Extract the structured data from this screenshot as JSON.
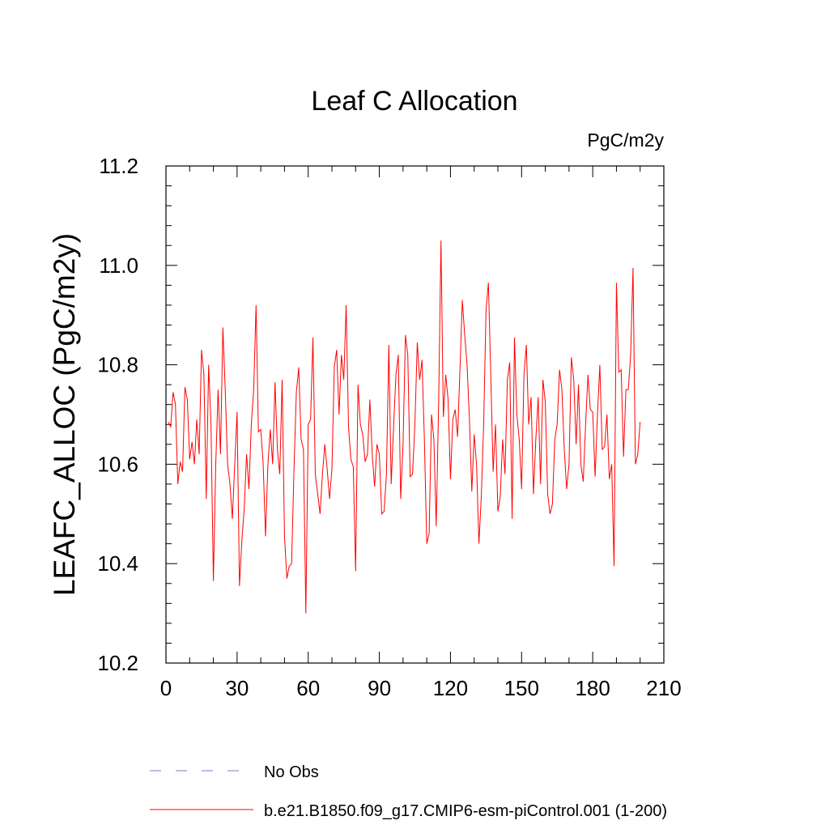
{
  "chart_data": {
    "type": "line",
    "title": "Leaf C Allocation",
    "units": "PgC/m2y",
    "xlabel": "",
    "ylabel": "LEAFC_ALLOC  (PgC/m2y)",
    "xlim": [
      0,
      210
    ],
    "ylim": [
      10.2,
      11.2
    ],
    "xticks": [
      0,
      30,
      60,
      90,
      120,
      150,
      180,
      210
    ],
    "xtick_labels": [
      "0",
      "30",
      "60",
      "90",
      "120",
      "150",
      "180",
      "210"
    ],
    "yticks": [
      10.2,
      10.4,
      10.6,
      10.8,
      11.0,
      11.2
    ],
    "ytick_labels": [
      "10.2",
      "10.4",
      "10.6",
      "10.8",
      "11.0",
      "11.2"
    ],
    "grid": false,
    "legend_position": "bottom",
    "series": [
      {
        "name": "No Obs",
        "color": "#7b7bc8",
        "dash": "dashed",
        "values": []
      },
      {
        "name": "b.e21.B1850.f09_g17.CMIP6-esm-piControl.001 (1-200)",
        "color": "#ff0000",
        "dash": "solid",
        "x_start": 1,
        "values": [
          10.685,
          10.675,
          10.745,
          10.72,
          10.56,
          10.605,
          10.585,
          10.755,
          10.73,
          10.61,
          10.645,
          10.6,
          10.69,
          10.62,
          10.83,
          10.78,
          10.53,
          10.8,
          10.68,
          10.365,
          10.6,
          10.75,
          10.62,
          10.875,
          10.75,
          10.6,
          10.56,
          10.49,
          10.6,
          10.705,
          10.355,
          10.445,
          10.51,
          10.62,
          10.55,
          10.68,
          10.75,
          10.92,
          10.665,
          10.67,
          10.6,
          10.455,
          10.6,
          10.67,
          10.6,
          10.765,
          10.63,
          10.58,
          10.77,
          10.455,
          10.37,
          10.395,
          10.4,
          10.59,
          10.745,
          10.795,
          10.65,
          10.63,
          10.3,
          10.68,
          10.69,
          10.855,
          10.58,
          10.54,
          10.5,
          10.58,
          10.64,
          10.59,
          10.53,
          10.59,
          10.795,
          10.83,
          10.7,
          10.82,
          10.77,
          10.92,
          10.675,
          10.61,
          10.595,
          10.385,
          10.76,
          10.68,
          10.66,
          10.605,
          10.62,
          10.73,
          10.62,
          10.555,
          10.64,
          10.62,
          10.5,
          10.505,
          10.58,
          10.84,
          10.56,
          10.675,
          10.78,
          10.82,
          10.53,
          10.64,
          10.86,
          10.82,
          10.575,
          10.58,
          10.68,
          10.845,
          10.77,
          10.81,
          10.65,
          10.44,
          10.46,
          10.7,
          10.65,
          10.475,
          10.72,
          11.05,
          10.695,
          10.78,
          10.73,
          10.57,
          10.69,
          10.71,
          10.655,
          10.79,
          10.93,
          10.86,
          10.8,
          10.69,
          10.545,
          10.66,
          10.6,
          10.44,
          10.535,
          10.68,
          10.91,
          10.965,
          10.78,
          10.585,
          10.68,
          10.505,
          10.535,
          10.65,
          10.58,
          10.77,
          10.805,
          10.49,
          10.855,
          10.7,
          10.65,
          10.55,
          10.78,
          10.84,
          10.68,
          10.735,
          10.54,
          10.65,
          10.735,
          10.56,
          10.77,
          10.725,
          10.54,
          10.5,
          10.52,
          10.65,
          10.68,
          10.79,
          10.75,
          10.63,
          10.55,
          10.6,
          10.815,
          10.77,
          10.64,
          10.76,
          10.6,
          10.565,
          10.68,
          10.78,
          10.71,
          10.705,
          10.575,
          10.7,
          10.8,
          10.63,
          10.635,
          10.7,
          10.57,
          10.6,
          10.395,
          10.965,
          10.785,
          10.79,
          10.615,
          10.75,
          10.75,
          10.82,
          10.995,
          10.6,
          10.62,
          10.685
        ]
      }
    ]
  }
}
